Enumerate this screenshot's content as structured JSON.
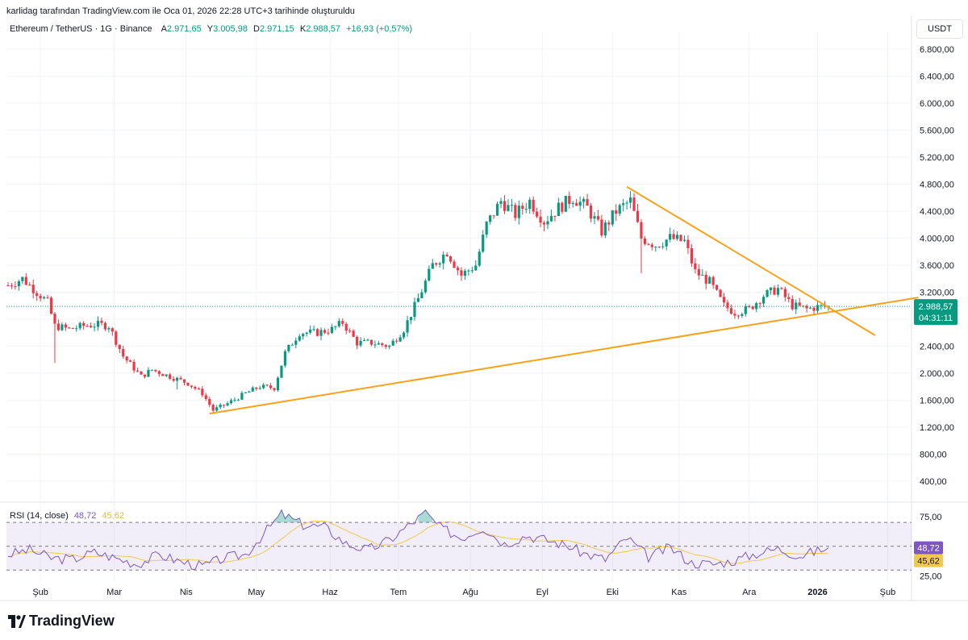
{
  "header": {
    "caption": "karlidag tarafından TradingView.com ile Oca 01, 2026 22:28 UTC+3 tarihinde oluşturuldu",
    "symbol": "Ethereum / TetherUS · 1G · Binance",
    "open_label": "A",
    "open": "2.971,65",
    "high_label": "Y",
    "high": "3.005,98",
    "low_label": "D",
    "low": "2.971,15",
    "close_label": "K",
    "close": "2.988,57",
    "change": "+16,93 (+0,57%)",
    "currency": "USDT"
  },
  "chart_data": {
    "type": "candlestick",
    "title": "Ethereum / TetherUS · 1G · Binance",
    "x_tick_labels": [
      "Şub",
      "Mar",
      "Nis",
      "May",
      "Haz",
      "Tem",
      "Ağu",
      "Eyl",
      "Eki",
      "Kas",
      "Ara",
      "2026",
      "Şub"
    ],
    "y_tick_values": [
      400,
      800,
      1200,
      1600,
      2000,
      2400,
      2800,
      3200,
      3600,
      4000,
      4400,
      4800,
      5200,
      5600,
      6000,
      6400,
      6800
    ],
    "y_tick_labels": [
      "400,00",
      "800,00",
      "1.200,00",
      "1.600,00",
      "2.000,00",
      "2.400,00",
      "2.800,00",
      "3.200,00",
      "3.600,00",
      "4.000,00",
      "4.400,00",
      "4.800,00",
      "5.200,00",
      "5.600,00",
      "6.000,00",
      "6.400,00",
      "6.800,00"
    ],
    "ylim": [
      100,
      7050
    ],
    "colors": {
      "up": "#089981",
      "down": "#f23645",
      "trendline": "#f7a21b",
      "rsi": "#7e57c2",
      "rsi_ma": "#f2c94c"
    },
    "last_price": 2988.57,
    "last_price_label": "2.988,57",
    "countdown": "04:31:11",
    "price_path": [
      [
        0,
        3300
      ],
      [
        4,
        3400
      ],
      [
        8,
        3200
      ],
      [
        11,
        3050
      ],
      [
        13,
        2700
      ],
      [
        17,
        2650
      ],
      [
        21,
        2700
      ],
      [
        25,
        2720
      ],
      [
        28,
        2700
      ],
      [
        32,
        2250
      ],
      [
        37,
        1950
      ],
      [
        40,
        2050
      ],
      [
        45,
        1950
      ],
      [
        50,
        1850
      ],
      [
        54,
        1700
      ],
      [
        57,
        1450
      ],
      [
        61,
        1550
      ],
      [
        66,
        1700
      ],
      [
        70,
        1800
      ],
      [
        74,
        1780
      ],
      [
        77,
        2300
      ],
      [
        81,
        2600
      ],
      [
        86,
        2600
      ],
      [
        90,
        2650
      ],
      [
        93,
        2750
      ],
      [
        97,
        2450
      ],
      [
        101,
        2450
      ],
      [
        106,
        2400
      ],
      [
        110,
        2650
      ],
      [
        114,
        3100
      ],
      [
        118,
        3600
      ],
      [
        122,
        3800
      ],
      [
        126,
        3450
      ],
      [
        130,
        3600
      ],
      [
        133,
        4200
      ],
      [
        137,
        4550
      ],
      [
        141,
        4350
      ],
      [
        145,
        4550
      ],
      [
        149,
        4250
      ],
      [
        153,
        4450
      ],
      [
        157,
        4600
      ],
      [
        161,
        4450
      ],
      [
        165,
        4100
      ],
      [
        169,
        4400
      ],
      [
        173,
        4550
      ],
      [
        176,
        4000
      ],
      [
        180,
        3900
      ],
      [
        184,
        4000
      ],
      [
        188,
        3950
      ],
      [
        191,
        3500
      ],
      [
        195,
        3350
      ],
      [
        199,
        3000
      ],
      [
        202,
        2900
      ],
      [
        206,
        2950
      ],
      [
        210,
        3150
      ],
      [
        214,
        3250
      ],
      [
        218,
        3000
      ],
      [
        222,
        2950
      ],
      [
        225,
        2980
      ],
      [
        228,
        2988.57
      ]
    ],
    "volatility_spikes": [
      {
        "day": 13,
        "low": 2150
      },
      {
        "day": 176,
        "low": 3480
      },
      {
        "day": 47,
        "low": 1760
      }
    ],
    "trendlines": [
      {
        "name": "ascending-support",
        "from": [
          56,
          1400
        ],
        "to": [
          253,
          3120
        ]
      },
      {
        "name": "descending-resistance",
        "from": [
          172,
          4760
        ],
        "to": [
          241,
          2560
        ]
      }
    ],
    "rsi": {
      "label": "RSI (14, close)",
      "value_label": "48,72",
      "ma_value_label": "45,62",
      "upper": 70,
      "lower": 30,
      "middle": 50,
      "ylim": [
        20,
        85
      ],
      "y_tick_values": [
        75,
        25
      ],
      "y_tick_labels": [
        "75,00",
        "25,00"
      ],
      "path": [
        [
          0,
          43
        ],
        [
          6,
          47
        ],
        [
          12,
          40
        ],
        [
          18,
          39
        ],
        [
          24,
          45
        ],
        [
          30,
          40
        ],
        [
          36,
          35
        ],
        [
          42,
          43
        ],
        [
          48,
          37
        ],
        [
          54,
          33
        ],
        [
          60,
          40
        ],
        [
          66,
          43
        ],
        [
          70,
          57
        ],
        [
          76,
          77
        ],
        [
          82,
          68
        ],
        [
          88,
          66
        ],
        [
          94,
          52
        ],
        [
          100,
          47
        ],
        [
          106,
          55
        ],
        [
          112,
          69
        ],
        [
          116,
          78
        ],
        [
          120,
          66
        ],
        [
          126,
          57
        ],
        [
          132,
          66
        ],
        [
          138,
          52
        ],
        [
          144,
          59
        ],
        [
          150,
          55
        ],
        [
          156,
          50
        ],
        [
          160,
          44
        ],
        [
          166,
          39
        ],
        [
          172,
          57
        ],
        [
          178,
          41
        ],
        [
          184,
          49
        ],
        [
          190,
          36
        ],
        [
          196,
          35
        ],
        [
          202,
          38
        ],
        [
          208,
          44
        ],
        [
          214,
          48
        ],
        [
          220,
          42
        ],
        [
          228,
          48.72
        ]
      ]
    }
  },
  "footer": {
    "brand": "TradingView"
  }
}
